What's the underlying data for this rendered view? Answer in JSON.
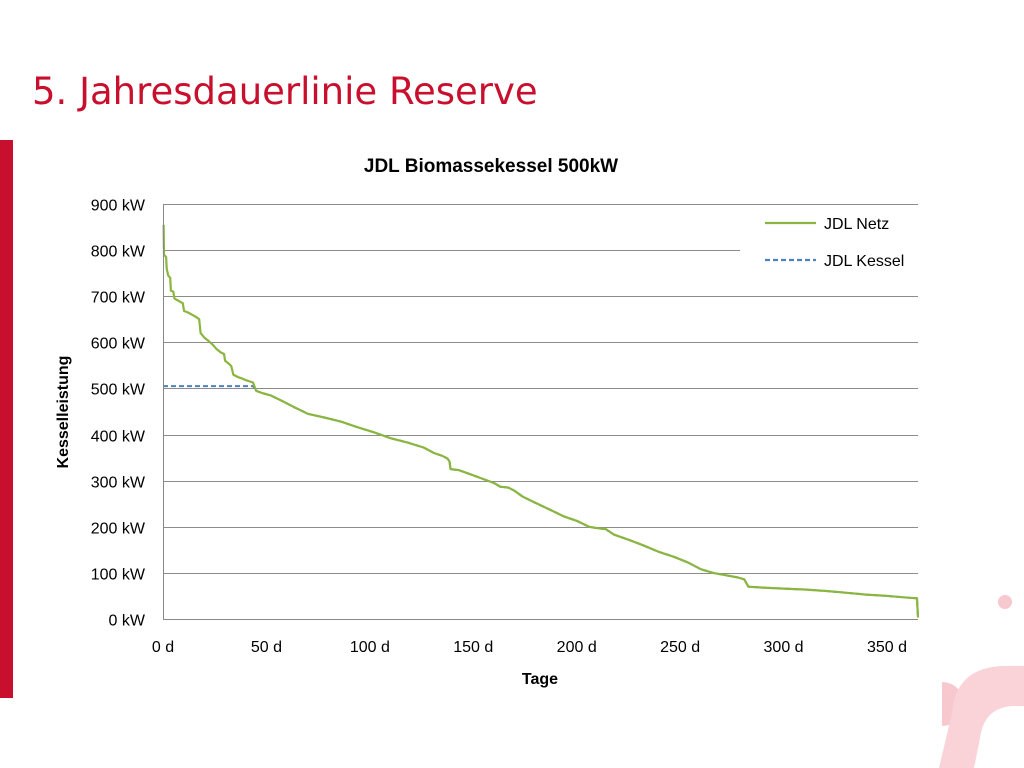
{
  "slide": {
    "title": "5. Jahresdauerlinie Reserve",
    "accent_color": "#c8102e"
  },
  "chart_data": {
    "type": "line",
    "title": "JDL Biomassekessel 500kW",
    "xlabel": "Tage",
    "ylabel": "Kesselleistung",
    "xlim": [
      0,
      365
    ],
    "ylim": [
      0,
      900
    ],
    "x_ticks": [
      {
        "value": 0,
        "label": "0 d"
      },
      {
        "value": 50,
        "label": "50 d"
      },
      {
        "value": 100,
        "label": "100 d"
      },
      {
        "value": 150,
        "label": "150 d"
      },
      {
        "value": 200,
        "label": "200 d"
      },
      {
        "value": 250,
        "label": "250 d"
      },
      {
        "value": 300,
        "label": "300 d"
      },
      {
        "value": 350,
        "label": "350 d"
      }
    ],
    "y_ticks": [
      {
        "value": 0,
        "label": "0 kW"
      },
      {
        "value": 100,
        "label": "100 kW"
      },
      {
        "value": 200,
        "label": "200 kW"
      },
      {
        "value": 300,
        "label": "300 kW"
      },
      {
        "value": 400,
        "label": "400 kW"
      },
      {
        "value": 500,
        "label": "500 kW"
      },
      {
        "value": 600,
        "label": "600 kW"
      },
      {
        "value": 700,
        "label": "700 kW"
      },
      {
        "value": 800,
        "label": "800 kW"
      },
      {
        "value": 900,
        "label": "900 kW"
      }
    ],
    "grid": "horizontal",
    "legend_position": "top-right",
    "series": [
      {
        "name": "JDL Netz",
        "color": "#8ab53e",
        "style": "solid",
        "points": [
          [
            0.3,
            855
          ],
          [
            0.5,
            790
          ],
          [
            1.5,
            785
          ],
          [
            1.8,
            760
          ],
          [
            2.5,
            745
          ],
          [
            3.5,
            740
          ],
          [
            3.8,
            712
          ],
          [
            5.0,
            710
          ],
          [
            5.5,
            695
          ],
          [
            7.5,
            690
          ],
          [
            9.5,
            685
          ],
          [
            10.2,
            668
          ],
          [
            12.0,
            665
          ],
          [
            14,
            660
          ],
          [
            16,
            655
          ],
          [
            17.5,
            650
          ],
          [
            18.2,
            620
          ],
          [
            20,
            610
          ],
          [
            22,
            603
          ],
          [
            24,
            595
          ],
          [
            26,
            585
          ],
          [
            28,
            578
          ],
          [
            29.5,
            575
          ],
          [
            30,
            560
          ],
          [
            32,
            553
          ],
          [
            33,
            548
          ],
          [
            34,
            530
          ],
          [
            36,
            525
          ],
          [
            38,
            522
          ],
          [
            40,
            518
          ],
          [
            42,
            515
          ],
          [
            43.5,
            513
          ],
          [
            45,
            495
          ],
          [
            48,
            490
          ],
          [
            52,
            485
          ],
          [
            58,
            472
          ],
          [
            64,
            458
          ],
          [
            70,
            445
          ],
          [
            78,
            437
          ],
          [
            86,
            428
          ],
          [
            94,
            416
          ],
          [
            102,
            405
          ],
          [
            110,
            392
          ],
          [
            118,
            383
          ],
          [
            126,
            372
          ],
          [
            131,
            360
          ],
          [
            135,
            354
          ],
          [
            137.5,
            348
          ],
          [
            138.5,
            342
          ],
          [
            139,
            325
          ],
          [
            143,
            323
          ],
          [
            148,
            315
          ],
          [
            154,
            305
          ],
          [
            160,
            295
          ],
          [
            163,
            287
          ],
          [
            167,
            285
          ],
          [
            170,
            278
          ],
          [
            174,
            265
          ],
          [
            180,
            252
          ],
          [
            188,
            235
          ],
          [
            194,
            222
          ],
          [
            200,
            213
          ],
          [
            206,
            200
          ],
          [
            210,
            197
          ],
          [
            214,
            195
          ],
          [
            218,
            183
          ],
          [
            225,
            172
          ],
          [
            232,
            160
          ],
          [
            240,
            145
          ],
          [
            247,
            135
          ],
          [
            254,
            122
          ],
          [
            260,
            108
          ],
          [
            266,
            100
          ],
          [
            272,
            95
          ],
          [
            278,
            90
          ],
          [
            281,
            86
          ],
          [
            283,
            70
          ],
          [
            290,
            68
          ],
          [
            300,
            66
          ],
          [
            310,
            64
          ],
          [
            320,
            61
          ],
          [
            330,
            57
          ],
          [
            340,
            53
          ],
          [
            350,
            50
          ],
          [
            358,
            47
          ],
          [
            364.5,
            45
          ],
          [
            364.8,
            20
          ],
          [
            365,
            3
          ]
        ]
      },
      {
        "name": "JDL Kessel",
        "color": "#4f81bd",
        "style": "dashed",
        "points": [
          [
            0,
            505
          ],
          [
            10,
            505
          ],
          [
            20,
            505
          ],
          [
            30,
            505
          ],
          [
            40,
            505
          ],
          [
            43.5,
            505
          ],
          [
            45,
            495
          ],
          [
            48,
            490
          ],
          [
            52,
            485
          ],
          [
            58,
            472
          ],
          [
            64,
            458
          ],
          [
            70,
            445
          ],
          [
            78,
            437
          ],
          [
            86,
            428
          ],
          [
            94,
            416
          ],
          [
            102,
            405
          ],
          [
            110,
            392
          ],
          [
            118,
            383
          ],
          [
            126,
            372
          ],
          [
            131,
            360
          ],
          [
            135,
            354
          ],
          [
            137.5,
            348
          ],
          [
            138.5,
            342
          ],
          [
            139,
            325
          ],
          [
            143,
            323
          ],
          [
            148,
            315
          ],
          [
            154,
            305
          ],
          [
            160,
            295
          ],
          [
            163,
            287
          ],
          [
            167,
            285
          ],
          [
            170,
            278
          ],
          [
            174,
            265
          ],
          [
            180,
            252
          ],
          [
            188,
            235
          ],
          [
            194,
            222
          ],
          [
            200,
            213
          ],
          [
            206,
            200
          ],
          [
            210,
            197
          ],
          [
            214,
            195
          ],
          [
            218,
            183
          ],
          [
            225,
            172
          ],
          [
            232,
            160
          ],
          [
            240,
            145
          ],
          [
            247,
            135
          ],
          [
            254,
            122
          ],
          [
            260,
            108
          ],
          [
            266,
            100
          ],
          [
            272,
            95
          ],
          [
            278,
            90
          ],
          [
            281,
            86
          ],
          [
            283,
            70
          ],
          [
            290,
            68
          ],
          [
            300,
            66
          ],
          [
            310,
            64
          ],
          [
            320,
            61
          ],
          [
            330,
            57
          ],
          [
            340,
            53
          ],
          [
            350,
            50
          ],
          [
            358,
            47
          ],
          [
            364.5,
            45
          ],
          [
            364.8,
            20
          ],
          [
            365,
            3
          ]
        ]
      }
    ]
  }
}
